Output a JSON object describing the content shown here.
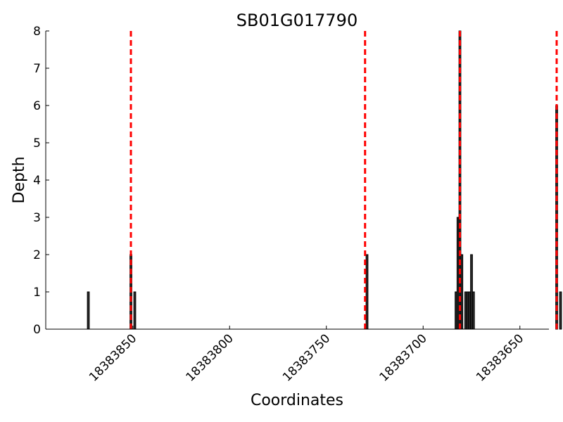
{
  "chart_data": {
    "type": "bar",
    "title": "SB01G017790",
    "xlabel": "Coordinates",
    "ylabel": "Depth",
    "xlim": [
      18383895,
      18383635
    ],
    "ylim": [
      0,
      8
    ],
    "x_reversed": true,
    "x_ticks": [
      18383850,
      18383800,
      18383750,
      18383700,
      18383650
    ],
    "y_ticks": [
      0,
      1,
      2,
      3,
      4,
      5,
      6,
      7,
      8
    ],
    "grid": false,
    "bars": [
      {
        "x": 18383873,
        "depth": 1
      },
      {
        "x": 18383851,
        "depth": 2
      },
      {
        "x": 18383849,
        "depth": 1
      },
      {
        "x": 18383729,
        "depth": 2
      },
      {
        "x": 18383683,
        "depth": 1
      },
      {
        "x": 18383682,
        "depth": 3
      },
      {
        "x": 18383681,
        "depth": 8
      },
      {
        "x": 18383680,
        "depth": 2
      },
      {
        "x": 18383678,
        "depth": 1
      },
      {
        "x": 18383677,
        "depth": 1
      },
      {
        "x": 18383676,
        "depth": 1
      },
      {
        "x": 18383675,
        "depth": 2
      },
      {
        "x": 18383674,
        "depth": 1
      },
      {
        "x": 18383631,
        "depth": 6
      },
      {
        "x": 18383629,
        "depth": 1
      }
    ],
    "exon_boundaries": [
      18383851,
      18383730,
      18383681,
      18383631
    ],
    "colors": {
      "bar_fill": "#2b2b2b",
      "bar_edge": "#000000",
      "boundary_line": "#ff0000"
    }
  }
}
